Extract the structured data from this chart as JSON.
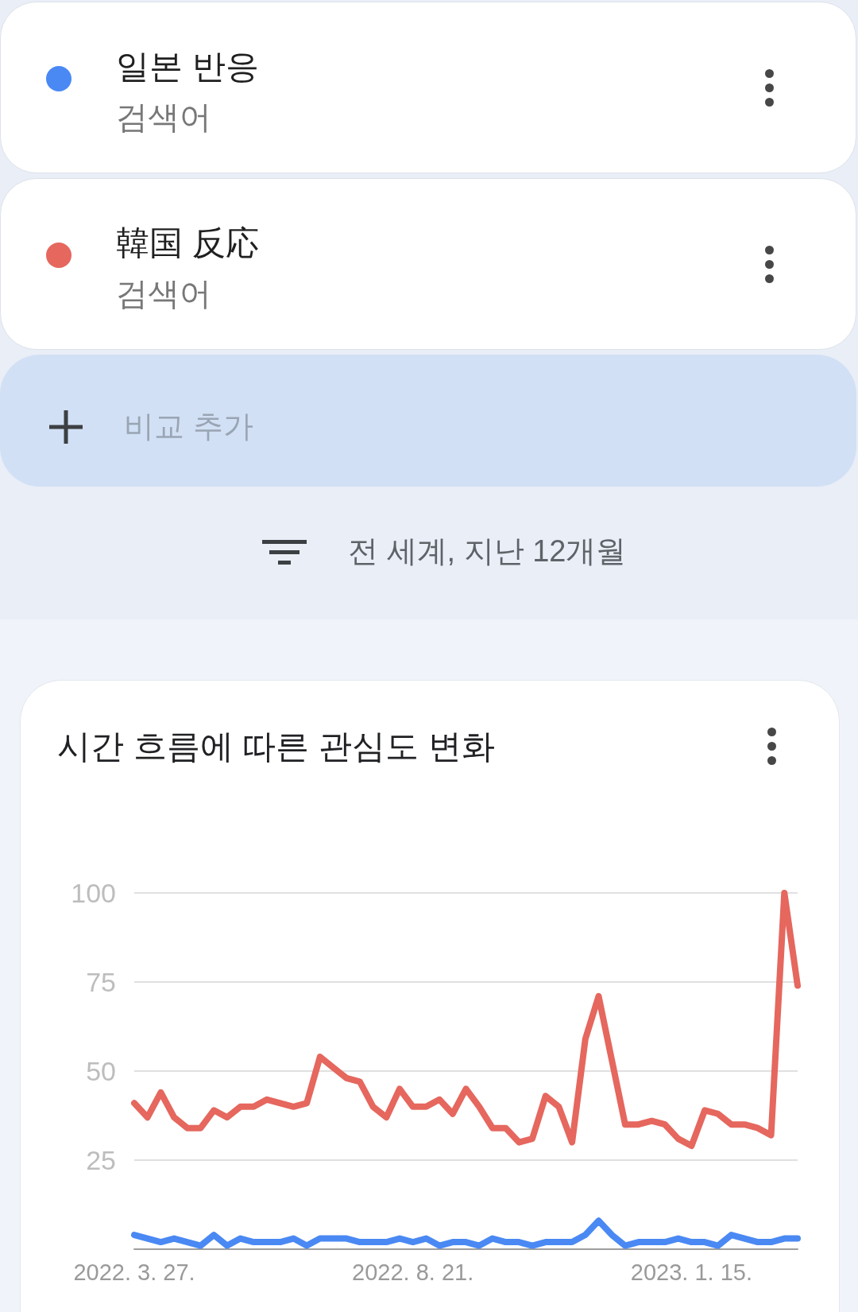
{
  "chart_data": {
    "type": "line",
    "title": "시간 흐름에 따른 관심도 변화",
    "subtitle": "전 세계, 지난 12개월",
    "annotations": [
      "검색어",
      "검색어",
      "비교 추가"
    ],
    "categories": [
      "2022. 3. 27.",
      null,
      null,
      null,
      null,
      null,
      null,
      null,
      null,
      null,
      null,
      null,
      null,
      null,
      null,
      null,
      null,
      null,
      null,
      null,
      null,
      "2022. 8. 21.",
      null,
      null,
      null,
      null,
      null,
      null,
      null,
      null,
      null,
      null,
      null,
      null,
      null,
      null,
      null,
      null,
      null,
      null,
      null,
      null,
      "2023. 1. 15.",
      null,
      null,
      null,
      null,
      null,
      null,
      null,
      null
    ],
    "series": [
      {
        "name": "일본 반응",
        "color": "#4a89f3",
        "values": [
          4,
          3,
          2,
          3,
          2,
          1,
          4,
          1,
          3,
          2,
          2,
          2,
          3,
          1,
          3,
          3,
          3,
          2,
          2,
          2,
          3,
          2,
          3,
          1,
          2,
          2,
          1,
          3,
          2,
          2,
          1,
          2,
          2,
          2,
          4,
          8,
          4,
          1,
          2,
          2,
          2,
          3,
          2,
          2,
          1,
          4,
          3,
          2,
          2,
          3,
          3
        ]
      },
      {
        "name": "韓国 反応",
        "color": "#e5675e",
        "values": [
          41,
          37,
          44,
          37,
          34,
          34,
          39,
          37,
          40,
          40,
          42,
          41,
          40,
          41,
          54,
          51,
          48,
          47,
          40,
          37,
          45,
          40,
          40,
          42,
          38,
          45,
          40,
          34,
          34,
          30,
          31,
          43,
          40,
          30,
          59,
          71,
          53,
          35,
          35,
          36,
          35,
          31,
          29,
          39,
          38,
          35,
          35,
          34,
          32,
          100,
          74
        ]
      }
    ],
    "ylim": [
      0,
      100
    ],
    "yticks": [
      25,
      50,
      75,
      100
    ],
    "grid": "y",
    "legend": "top"
  }
}
